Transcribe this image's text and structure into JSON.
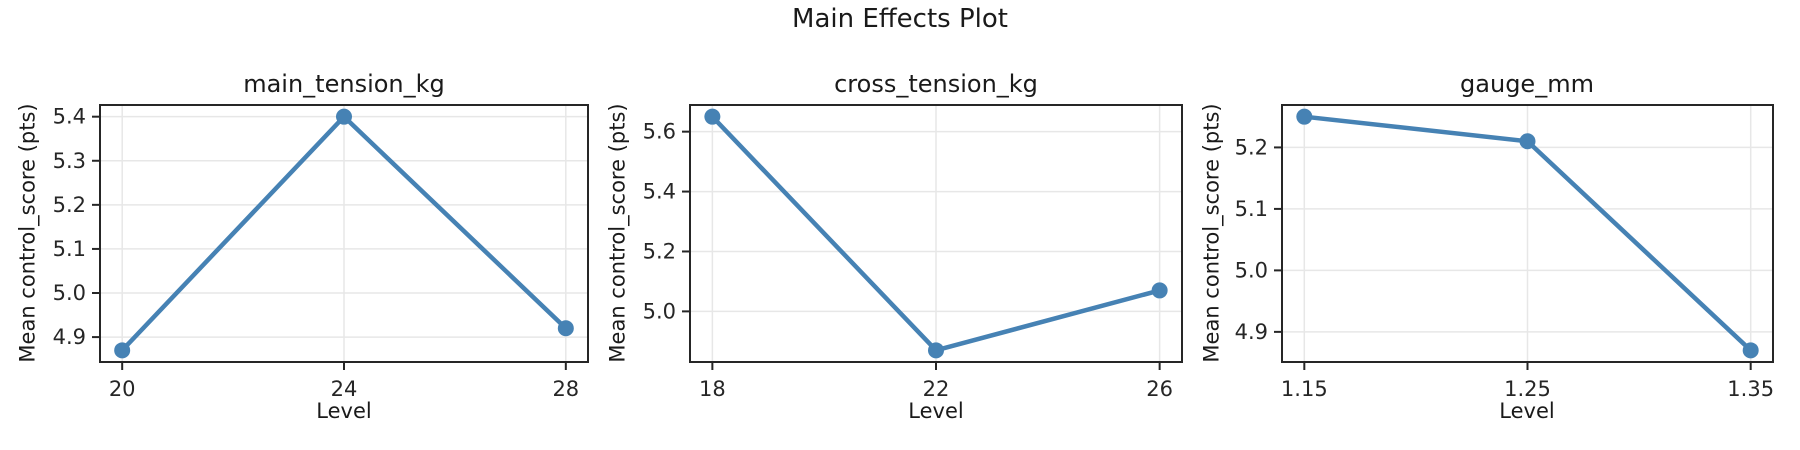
{
  "chart_data": {
    "type": "line",
    "title": "Main Effects Plot",
    "layout": "1 row x 3 subplots, grid on, no legend",
    "line_color": "#4682B4",
    "grid_color": "#e7e7e7",
    "axis_color": "#262626",
    "marker": "circle",
    "subplots": [
      {
        "title": "main_tension_kg",
        "xlabel": "Level",
        "ylabel": "Mean control_score (pts)",
        "x": [
          20,
          24,
          28
        ],
        "y": [
          4.87,
          5.4,
          4.92
        ],
        "xtick_labels": [
          "20",
          "24",
          "28"
        ],
        "yticks": [
          4.9,
          5.0,
          5.1,
          5.2,
          5.3,
          5.4
        ],
        "ytick_labels": [
          "4.9",
          "5.0",
          "5.1",
          "5.2",
          "5.3",
          "5.4"
        ],
        "xlim": [
          19.6,
          28.4
        ],
        "ylim": [
          4.8435,
          5.4265
        ]
      },
      {
        "title": "cross_tension_kg",
        "xlabel": "Level",
        "ylabel": "Mean control_score (pts)",
        "x": [
          18,
          22,
          26
        ],
        "y": [
          5.65,
          4.87,
          5.07
        ],
        "xtick_labels": [
          "18",
          "22",
          "26"
        ],
        "yticks": [
          5.0,
          5.2,
          5.4,
          5.6
        ],
        "ytick_labels": [
          "5.0",
          "5.2",
          "5.4",
          "5.6"
        ],
        "xlim": [
          17.6,
          26.4
        ],
        "ylim": [
          4.831,
          5.689
        ]
      },
      {
        "title": "gauge_mm",
        "xlabel": "Level",
        "ylabel": "Mean control_score (pts)",
        "x": [
          1.15,
          1.25,
          1.35
        ],
        "y": [
          5.25,
          5.21,
          4.87
        ],
        "xtick_labels": [
          "1.15",
          "1.25",
          "1.35"
        ],
        "yticks": [
          4.9,
          5.0,
          5.1,
          5.2
        ],
        "ytick_labels": [
          "4.9",
          "5.0",
          "5.1",
          "5.2"
        ],
        "xlim": [
          1.14,
          1.36
        ],
        "ylim": [
          4.851,
          5.269
        ]
      }
    ]
  }
}
